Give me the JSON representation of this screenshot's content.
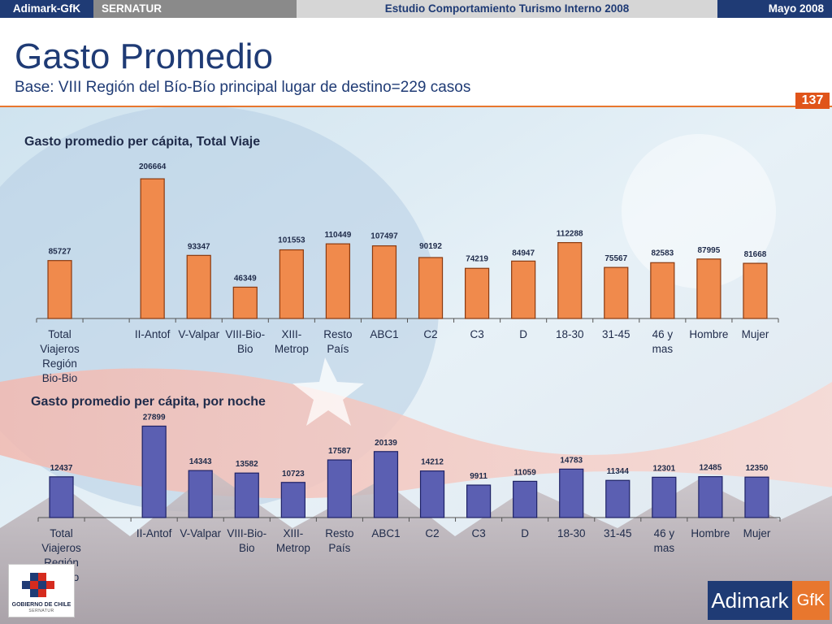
{
  "topbar": {
    "brand": "Adimark-GfK",
    "client": "SERNATUR",
    "study": "Estudio Comportamiento Turismo Interno 2008",
    "date": "Mayo 2008"
  },
  "header": {
    "title": "Gasto Promedio",
    "subtitle": "Base: VIII Región del Bío-Bío principal lugar de destino=229 casos",
    "page_number": "137"
  },
  "logos": {
    "gov": "GOBIERNO DE CHILE",
    "gov_sub": "SERNATUR",
    "adimark": "Adimark",
    "gfk": "GfK"
  },
  "colors": {
    "accent": "#e8772e",
    "brand": "#1f3b75",
    "bar1_fill": "#f08a4c",
    "bar1_stroke": "#8a3a10",
    "bar2_fill": "#5b5fb2",
    "bar2_stroke": "#1e2266"
  },
  "chart_data": [
    {
      "type": "bar",
      "title": "Gasto promedio per cápita, Total Viaje",
      "categories": [
        "Total Viajeros Región Bio-Bio",
        "",
        "II-Antof",
        "V-Valpar",
        "VIII-Bio-Bio",
        "XIII-Metrop",
        "Resto País",
        "ABC1",
        "C2",
        "C3",
        "D",
        "18-30",
        "31-45",
        "46 y mas",
        "Hombre",
        "Mujer"
      ],
      "category_lines": [
        [
          "Total",
          "Viajeros",
          "Región",
          "Bio-Bio"
        ],
        [],
        [
          "II-Antof"
        ],
        [
          "V-Valpar"
        ],
        [
          "VIII-Bio-",
          "Bio"
        ],
        [
          "XIII-",
          "Metrop"
        ],
        [
          "Resto",
          "País"
        ],
        [
          "ABC1"
        ],
        [
          "C2"
        ],
        [
          "C3"
        ],
        [
          "D"
        ],
        [
          "18-30"
        ],
        [
          "31-45"
        ],
        [
          "46 y",
          "mas"
        ],
        [
          "Hombre"
        ],
        [
          "Mujer"
        ]
      ],
      "values": [
        85727,
        null,
        206664,
        93347,
        46349,
        101553,
        110449,
        107497,
        90192,
        74219,
        84947,
        112288,
        75567,
        82583,
        87995,
        81668
      ],
      "labels": [
        "85727",
        "",
        "206664",
        "93347",
        "46349",
        "101553",
        "110449",
        "107497",
        "90192",
        "74219",
        "84947",
        "112288",
        "75567",
        "82583",
        "87995",
        "81668"
      ],
      "ylim": [
        0,
        220000
      ]
    },
    {
      "type": "bar",
      "title": "Gasto promedio per cápita, por noche",
      "categories": [
        "Total Viajeros Región Bio-Bio",
        "",
        "II-Antof",
        "V-Valpar",
        "VIII-Bio-Bio",
        "XIII-Metrop",
        "Resto País",
        "ABC1",
        "C2",
        "C3",
        "D",
        "18-30",
        "31-45",
        "46 y mas",
        "Hombre",
        "Mujer"
      ],
      "category_lines": [
        [
          "Total",
          "Viajeros",
          "Región",
          "Bio-Bio"
        ],
        [],
        [
          "II-Antof"
        ],
        [
          "V-Valpar"
        ],
        [
          "VIII-Bio-",
          "Bio"
        ],
        [
          "XIII-",
          "Metrop"
        ],
        [
          "Resto",
          "País"
        ],
        [
          "ABC1"
        ],
        [
          "C2"
        ],
        [
          "C3"
        ],
        [
          "D"
        ],
        [
          "18-30"
        ],
        [
          "31-45"
        ],
        [
          "46 y",
          "mas"
        ],
        [
          "Hombre"
        ],
        [
          "Mujer"
        ]
      ],
      "values": [
        12437,
        null,
        27899,
        14343,
        13582,
        10723,
        17587,
        20139,
        14212,
        9911,
        11059,
        14783,
        11344,
        12301,
        12485,
        12350
      ],
      "labels": [
        "12437",
        "",
        "27899",
        "14343",
        "13582",
        "10723",
        "17587",
        "20139",
        "14212",
        "9911",
        "11059",
        "14783",
        "11344",
        "12301",
        "12485",
        "12350"
      ],
      "ylim": [
        0,
        30000
      ]
    }
  ]
}
